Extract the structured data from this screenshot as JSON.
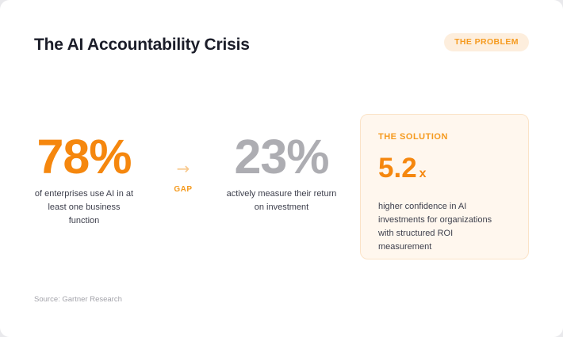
{
  "header": {
    "title": "The AI Accountability Crisis",
    "badge": "THE PROBLEM"
  },
  "stats": {
    "adoption": {
      "value": "78%",
      "description": "of enterprises use AI in at least one business function"
    },
    "gap": {
      "arrow": "→",
      "label": "GAP"
    },
    "measurement": {
      "value": "23%",
      "description": "actively measure their return on investment"
    }
  },
  "solution": {
    "label": "THE SOLUTION",
    "value": "5.2",
    "unit": "x",
    "description": "higher confidence in AI investments for organizations with structured ROI measurement"
  },
  "footer": {
    "source": "Source: Gartner Research"
  },
  "colors": {
    "accent": "#f5870e",
    "muted_stat": "#adadb2",
    "badge_bg": "#fdeedd",
    "solution_bg": "#fff7ee"
  }
}
